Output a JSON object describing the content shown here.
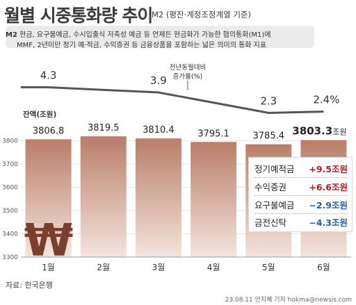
{
  "header": {
    "title": "월별 시중통화량 추이",
    "subtitle": "M2 (평잔·계정조정계열 기준)"
  },
  "description": {
    "lead": "M2",
    "line1": "현금, 요구불예금, 수시입출식 저축성 예금 등 언제든 현금화가 가능한 협의통화(M1)에",
    "line2": "MMF, 2년미만 정기 예·적금, 수익증권 등 금융상품을 포함하는 넓은 의미의 통화 지표"
  },
  "chart_data": {
    "type": "bar",
    "categories": [
      "1월",
      "2월",
      "3월",
      "4월",
      "5월",
      "6월"
    ],
    "series": [
      {
        "name": "잔액(조원)",
        "values": [
          3806.8,
          3819.5,
          3810.4,
          3795.1,
          3785.4,
          3803.3
        ]
      }
    ],
    "value_labels": [
      "3806.8",
      "3819.5",
      "3810.4",
      "3795.1",
      "3785.4",
      "3803.3"
    ],
    "last_value_unit": "조원",
    "ylim": [
      3300,
      3850
    ],
    "yticks": [
      3300,
      3400,
      3500,
      3600,
      3700,
      3800
    ],
    "ytick_labels": [
      "3300",
      "3400",
      "3500",
      "3600",
      "3700",
      "3800"
    ],
    "ylabel": "잔액(조원)",
    "line": {
      "label_line1": "전년동월대비",
      "label_line2": "증가율(%)",
      "values": [
        4.3,
        null,
        3.9,
        null,
        2.3,
        2.4
      ],
      "value_labels": [
        "4.3",
        "",
        "3.9",
        "",
        "2.3",
        "2.4%"
      ]
    },
    "legend_placement": "right",
    "colors": {
      "bar_top": "#b97e68",
      "bar_bottom": "#f4e4dd",
      "line": "#555555",
      "won_symbol": "#7a3f2e"
    }
  },
  "legend_box": {
    "items": [
      {
        "label": "정기예적금",
        "value": "+9.5조원",
        "color": "#c4161c"
      },
      {
        "label": "수익증권",
        "value": "+6.6조원",
        "color": "#c4161c"
      },
      {
        "label": "요구불예금",
        "value": "−2.9조원",
        "color": "#1f5fa8"
      },
      {
        "label": "금전신탁",
        "value": "−4.3조원",
        "color": "#1f5fa8"
      }
    ]
  },
  "footer": {
    "source": "자료: 한국은행",
    "credit": "23.08.11 안지혜 기자 hokma@newsis.com"
  }
}
